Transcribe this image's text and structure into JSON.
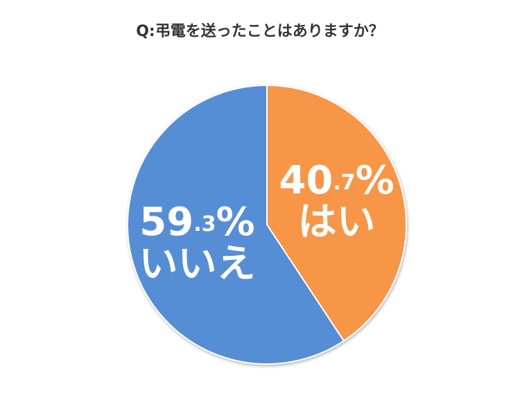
{
  "chart_data": {
    "type": "pie",
    "title": "Q:弔電を送ったことはありますか？",
    "categories": [
      "はい",
      "いいえ"
    ],
    "values": [
      40.7,
      59.3
    ],
    "value_labels": [
      "40.7%",
      "59.3%"
    ],
    "colors": [
      "#f79646",
      "#558ed5"
    ]
  }
}
